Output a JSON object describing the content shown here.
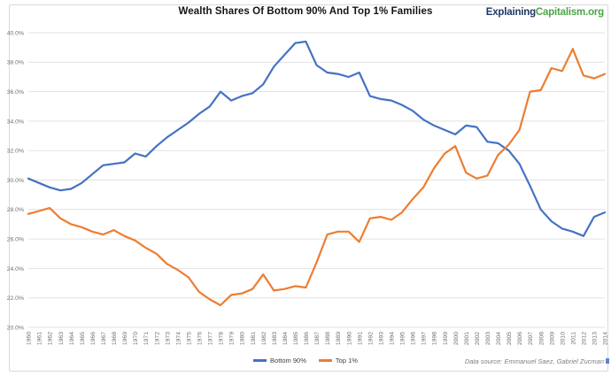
{
  "header": {
    "title": "Wealth Shares Of Bottom 90% And Top 1% Families",
    "logo": {
      "explaining": "Explaining",
      "capitalism": "Capitalism.org"
    }
  },
  "footer": {
    "data_source": "Data source: Emmanuel Saez, Gabriel Zucman"
  },
  "colors": {
    "bottom90": "#4472C4",
    "top1": "#ED7D31",
    "grid": "#E2E2E2",
    "axis_text": "#6E6E6E",
    "logo_navy": "#1F3864",
    "logo_green": "#4CA546"
  },
  "chart_data": {
    "type": "line",
    "title": "Wealth Shares Of Bottom 90% And Top 1% Families",
    "grid": true,
    "legend_position": "bottom",
    "x_label_rotation": 90,
    "ylim": [
      20,
      40
    ],
    "ytick_step": 2,
    "y_ticks": [
      "40.0%",
      "38.0%",
      "36.0%",
      "34.0%",
      "32.0%",
      "30.0%",
      "28.0%",
      "26.0%",
      "24.0%",
      "22.0%",
      "20.0%"
    ],
    "x": [
      1960,
      1961,
      1962,
      1963,
      1964,
      1965,
      1966,
      1967,
      1968,
      1969,
      1970,
      1971,
      1972,
      1973,
      1974,
      1975,
      1976,
      1977,
      1978,
      1979,
      1980,
      1981,
      1982,
      1983,
      1984,
      1985,
      1986,
      1987,
      1988,
      1989,
      1990,
      1991,
      1992,
      1993,
      1994,
      1995,
      1996,
      1997,
      1998,
      1999,
      2000,
      2001,
      2002,
      2003,
      2004,
      2005,
      2006,
      2007,
      2008,
      2009,
      2010,
      2011,
      2012,
      2013,
      2014
    ],
    "series": [
      {
        "name": "Bottom 90%",
        "color": "#4472C4",
        "values": [
          30.1,
          29.8,
          29.5,
          29.3,
          29.4,
          29.8,
          30.4,
          31.0,
          31.1,
          31.2,
          31.8,
          31.6,
          32.3,
          32.9,
          33.4,
          33.9,
          34.5,
          35.0,
          36.0,
          35.4,
          35.7,
          35.9,
          36.5,
          37.7,
          38.5,
          39.3,
          39.4,
          37.8,
          37.3,
          37.2,
          37.0,
          37.3,
          35.7,
          35.5,
          35.4,
          35.1,
          34.7,
          34.1,
          33.7,
          33.4,
          33.1,
          33.7,
          33.6,
          32.6,
          32.5,
          32.0,
          31.1,
          29.6,
          28.0,
          27.2,
          26.7,
          26.5,
          26.2,
          27.5,
          27.8
        ]
      },
      {
        "name": "Top 1%",
        "color": "#ED7D31",
        "values": [
          27.7,
          27.9,
          28.1,
          27.4,
          27.0,
          26.8,
          26.5,
          26.3,
          26.6,
          26.2,
          25.9,
          25.4,
          25.0,
          24.3,
          23.9,
          23.4,
          22.4,
          21.9,
          21.5,
          22.2,
          22.3,
          22.6,
          23.6,
          22.5,
          22.6,
          22.8,
          22.7,
          24.4,
          26.3,
          26.5,
          26.5,
          25.8,
          27.4,
          27.5,
          27.3,
          27.8,
          28.7,
          29.5,
          30.8,
          31.8,
          32.3,
          30.5,
          30.1,
          30.3,
          31.7,
          32.4,
          33.4,
          36.0,
          36.1,
          37.6,
          37.4,
          38.9,
          37.1,
          36.9,
          37.2
        ]
      }
    ]
  }
}
